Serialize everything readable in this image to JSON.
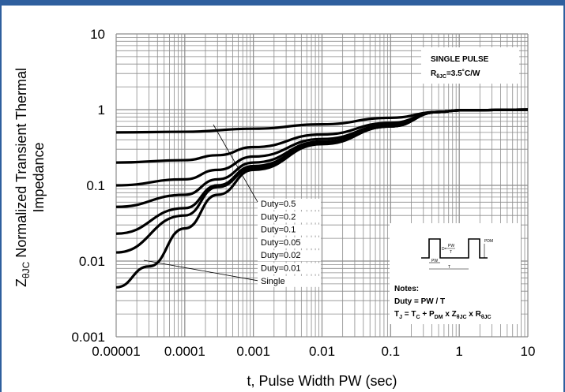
{
  "chart_data": {
    "type": "line",
    "x_scale": "log",
    "y_scale": "log",
    "xlim": [
      1e-05,
      10
    ],
    "ylim": [
      0.001,
      10
    ],
    "x_ticks": [
      "0.00001",
      "0.0001",
      "0.001",
      "0.01",
      "0.1",
      "1",
      "10"
    ],
    "y_ticks": [
      "10",
      "1",
      "0.1",
      "0.01",
      "0.001"
    ],
    "xlabel": "t, Pulse Width PW (sec)",
    "ylabel": "ZθJC Normalized Transient Thermal Impedance",
    "grid": true,
    "annotation_box": {
      "line1": "SINGLE PULSE",
      "line2": "RθJC=3.5˚C/W"
    },
    "notes": {
      "title": "Notes:",
      "line1": "Duty = PW / T",
      "line2": "TJ = TC + PDM x ZθJC x RθJC",
      "inset_labels": {
        "pdm": "PDM",
        "pw": "PW",
        "d": "D=",
        "t_frac": "T",
        "pw_span": "PW",
        "t_span": "T"
      }
    },
    "series": [
      {
        "name": "Duty=0.5",
        "x": [
          1e-05,
          0.0001,
          0.001,
          0.01,
          0.1,
          0.5,
          1,
          10
        ],
        "y": [
          0.5,
          0.51,
          0.56,
          0.64,
          0.78,
          0.93,
          0.98,
          1.0
        ]
      },
      {
        "name": "Duty=0.2",
        "x": [
          1e-05,
          0.0001,
          0.0003,
          0.001,
          0.01,
          0.1,
          0.5,
          1,
          10
        ],
        "y": [
          0.2,
          0.215,
          0.25,
          0.32,
          0.47,
          0.67,
          0.93,
          0.98,
          1.0
        ]
      },
      {
        "name": "Duty=0.1",
        "x": [
          1e-05,
          0.0001,
          0.0003,
          0.001,
          0.01,
          0.1,
          0.5,
          1,
          10
        ],
        "y": [
          0.1,
          0.12,
          0.16,
          0.24,
          0.41,
          0.63,
          0.93,
          0.98,
          1.0
        ]
      },
      {
        "name": "Duty=0.05",
        "x": [
          1e-05,
          0.0001,
          0.0003,
          0.001,
          0.01,
          0.1,
          0.5,
          1,
          10
        ],
        "y": [
          0.052,
          0.075,
          0.12,
          0.2,
          0.38,
          0.61,
          0.93,
          0.98,
          1.0
        ]
      },
      {
        "name": "Duty=0.02",
        "x": [
          1e-05,
          0.0001,
          0.0003,
          0.001,
          0.01,
          0.1,
          0.5,
          1,
          10
        ],
        "y": [
          0.023,
          0.05,
          0.1,
          0.18,
          0.36,
          0.6,
          0.93,
          0.98,
          1.0
        ]
      },
      {
        "name": "Duty=0.01",
        "x": [
          1e-05,
          0.0001,
          0.0003,
          0.001,
          0.01,
          0.1,
          0.5,
          1,
          10
        ],
        "y": [
          0.013,
          0.04,
          0.095,
          0.17,
          0.355,
          0.6,
          0.93,
          0.98,
          1.0
        ]
      },
      {
        "name": "Single",
        "x": [
          1e-05,
          3e-05,
          0.0001,
          0.0003,
          0.001,
          0.01,
          0.1,
          0.5,
          1,
          10
        ],
        "y": [
          0.0045,
          0.0085,
          0.027,
          0.075,
          0.16,
          0.35,
          0.6,
          0.93,
          0.98,
          1.0
        ]
      }
    ],
    "legend_order": [
      "Duty=0.5",
      "Duty=0.2",
      "Duty=0.1",
      "Duty=0.05",
      "Duty=0.02",
      "Duty=0.01",
      "Single"
    ],
    "colors": {
      "frame": "#2f5f9e",
      "grid": "#8c8c8c",
      "curve": "#000000"
    }
  }
}
